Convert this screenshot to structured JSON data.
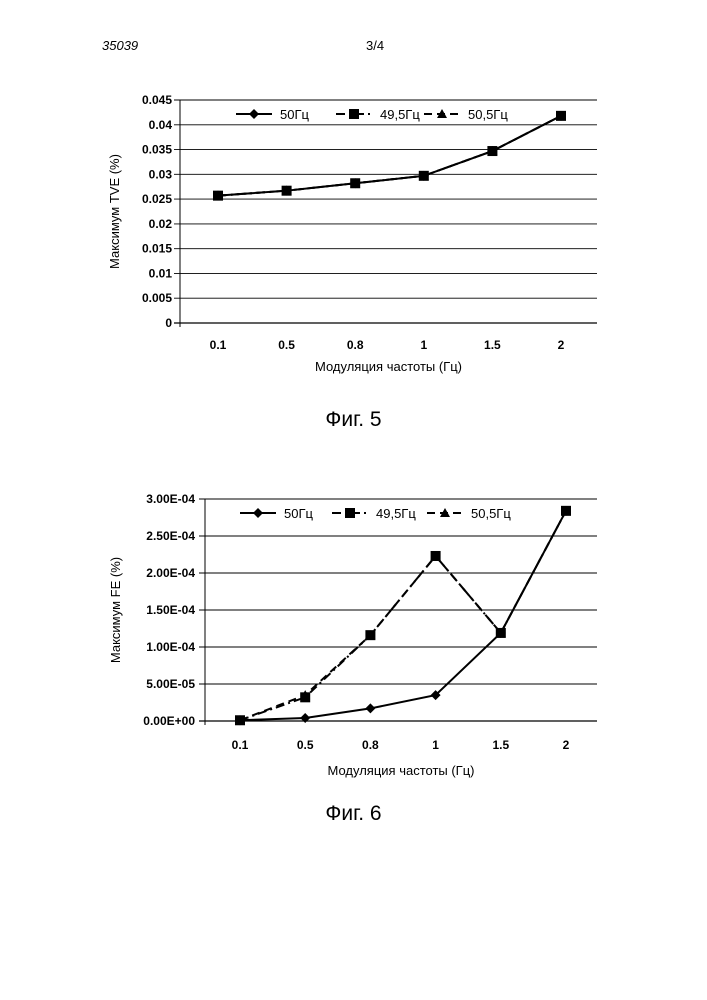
{
  "header": {
    "doc_id": "35039",
    "page": "3/4"
  },
  "captions": [
    "Фиг. 5",
    "Фиг. 6"
  ],
  "colors": {
    "line": "#000000",
    "grid": "#000000"
  },
  "chart_data": [
    {
      "type": "line",
      "xlabel": "Модуляция частоты (Гц)",
      "ylabel": "Максимум TVE (%)",
      "categories": [
        "0.1",
        "0.5",
        "0.8",
        "1",
        "1.5",
        "2"
      ],
      "ylim": [
        0,
        0.045
      ],
      "yticks": [
        "0",
        "0.005",
        "0.01",
        "0.015",
        "0.02",
        "0.025",
        "0.03",
        "0.035",
        "0.04",
        "0.045"
      ],
      "grid": true,
      "legend_position": "top",
      "series": [
        {
          "name": "50Гц",
          "marker": "diamond",
          "dash": "solid",
          "values": [
            0.0257,
            0.0267,
            0.0282,
            0.0297,
            0.0347,
            0.0418
          ]
        },
        {
          "name": "49,5Гц",
          "marker": "square",
          "dash": "dashdot",
          "values": [
            0.0257,
            0.0267,
            0.0282,
            0.0297,
            0.0347,
            0.0418
          ]
        },
        {
          "name": "50,5Гц",
          "marker": "triangle",
          "dash": "dash",
          "values": [
            0.0257,
            0.0267,
            0.0282,
            0.0297,
            0.0347,
            0.0418
          ]
        }
      ]
    },
    {
      "type": "line",
      "xlabel": "Модуляция частоты (Гц)",
      "ylabel": "Максимум FE (%)",
      "categories": [
        "0.1",
        "0.5",
        "0.8",
        "1",
        "1.5",
        "2"
      ],
      "ylim": [
        0,
        0.0003
      ],
      "yticks": [
        "0.00E+00",
        "5.00E-05",
        "1.00E-04",
        "1.50E-04",
        "2.00E-04",
        "2.50E-04",
        "3.00E-04"
      ],
      "grid": true,
      "legend_position": "top",
      "series": [
        {
          "name": "50Гц",
          "marker": "diamond",
          "dash": "solid",
          "values": [
            1e-06,
            4e-06,
            1.7e-05,
            3.5e-05,
            0.000119,
            0.000284
          ]
        },
        {
          "name": "49,5Гц",
          "marker": "square",
          "dash": "dashdot",
          "values": [
            1e-06,
            3.2e-05,
            0.000116,
            0.000223,
            0.000119,
            0.000284
          ]
        },
        {
          "name": "50,5Гц",
          "marker": "triangle",
          "dash": "dash",
          "values": [
            1e-06,
            3.5e-05,
            0.000116,
            0.000223,
            0.000119,
            0.000284
          ]
        }
      ]
    }
  ]
}
